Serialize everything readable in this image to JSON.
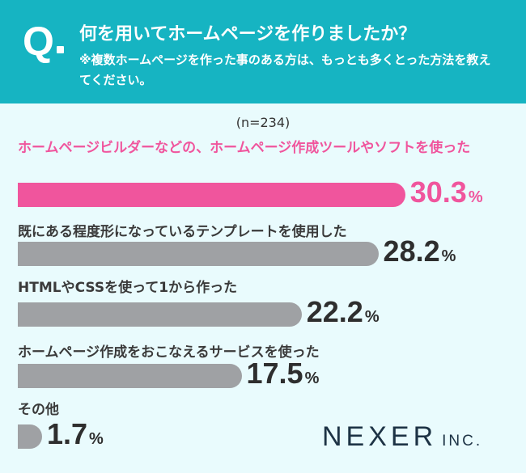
{
  "header": {
    "q": "Q",
    "title": "何を用いてホームページを作りましたか？",
    "note": "※複数ホームページを作った事のある方は、もっとも多くとった方法を教えてください。"
  },
  "sample_size": "(n=234)",
  "logo": {
    "main": "NEXER",
    "sub": "INC."
  },
  "colors": {
    "header": "#16b4c2",
    "highlight": "#f0559d",
    "bar": "#9fa1a4",
    "background": "#e9fbfd"
  },
  "chart_data": {
    "type": "bar",
    "orientation": "horizontal",
    "categories": [
      "ホームページビルダーなどの、ホームページ作成ツールやソフトを使った",
      "既にある程度形になっているテンプレートを使用した",
      "HTMLやCSSを使って1から作った",
      "ホームページ作成をおこなえるサービスを使った",
      "その他"
    ],
    "values": [
      30.3,
      28.2,
      22.2,
      17.5,
      1.7
    ],
    "labels": [
      "30.3",
      "28.2",
      "22.2",
      "17.5",
      "1.7"
    ],
    "unit": "%"
  }
}
